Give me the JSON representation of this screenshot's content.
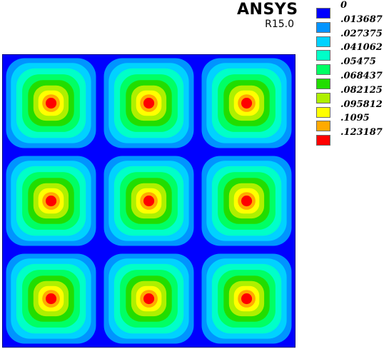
{
  "brand": {
    "name": "ANSYS",
    "release": "R15.0"
  },
  "legend": {
    "levels": [
      {
        "label": "0",
        "color": "#0000ff"
      },
      {
        "label": ".013687",
        "color": "#0094ff"
      },
      {
        "label": ".027375",
        "color": "#00d2ff"
      },
      {
        "label": ".041062",
        "color": "#00ffc8"
      },
      {
        "label": ".05475",
        "color": "#00ff64"
      },
      {
        "label": ".068437",
        "color": "#22dd00"
      },
      {
        "label": ".082125",
        "color": "#aef000"
      },
      {
        "label": ".095812",
        "color": "#ffff00"
      },
      {
        "label": ".1095",
        "color": "#ffaa00"
      },
      {
        "label": ".123187",
        "color": "#ff0000"
      }
    ]
  },
  "plot": {
    "grid": {
      "rows": 3,
      "cols": 3
    },
    "background_color": "#0000ff"
  }
}
